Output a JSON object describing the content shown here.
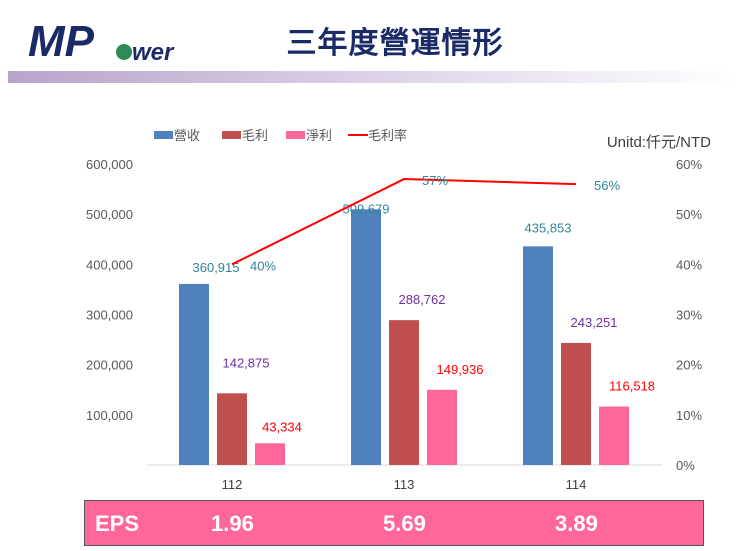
{
  "header": {
    "title": "三年度營運情形",
    "logo_text": "MPower"
  },
  "chart_data": {
    "type": "bar+line",
    "unit_label": "Unitd:仟元/NTD",
    "categories": [
      "112",
      "113",
      "114"
    ],
    "series": [
      {
        "name": "營收",
        "type": "bar",
        "axis": "left",
        "color": "#4f81bd",
        "values": [
          360915,
          509679,
          435853
        ],
        "labels": [
          "360,915",
          "509,679",
          "435,853"
        ],
        "label_color": "#31849b"
      },
      {
        "name": "毛利",
        "type": "bar",
        "axis": "left",
        "color": "#c0504d",
        "values": [
          142875,
          288762,
          243251
        ],
        "labels": [
          "142,875",
          "288,762",
          "243,251"
        ],
        "label_color": "#7030a0"
      },
      {
        "name": "淨利",
        "type": "bar",
        "axis": "left",
        "color": "#ff6699",
        "values": [
          43334,
          149936,
          116518
        ],
        "labels": [
          "43,334",
          "149,936",
          "116,518"
        ],
        "label_color": "#ff0000"
      },
      {
        "name": "毛利率",
        "type": "line",
        "axis": "right",
        "color": "#ff0000",
        "values": [
          40,
          57,
          56
        ],
        "labels": [
          "40%",
          "57%",
          "56%"
        ],
        "label_color": "#31849b"
      }
    ],
    "left_axis": {
      "ylim": [
        0,
        600000
      ],
      "ticks": [
        "",
        "100,000",
        "200,000",
        "300,000",
        "400,000",
        "500,000",
        "600,000"
      ]
    },
    "right_axis": {
      "ylim": [
        0,
        60
      ],
      "ticks": [
        "0%",
        "10%",
        "20%",
        "30%",
        "40%",
        "50%",
        "60%"
      ]
    },
    "grid": true,
    "legend": "top"
  },
  "eps": {
    "label": "EPS",
    "values": [
      "1.96",
      "5.69",
      "3.89"
    ]
  }
}
